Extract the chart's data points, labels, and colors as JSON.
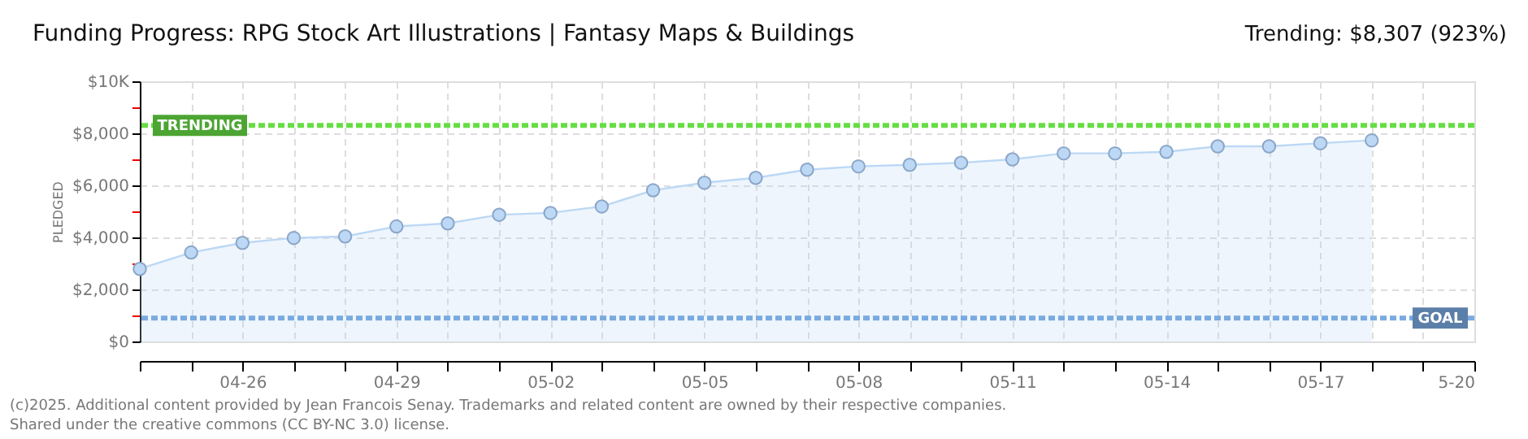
{
  "chart_data": {
    "type": "area",
    "title": "Funding Progress: RPG Stock Art Illustrations | Fantasy Maps & Buildings",
    "subtitle": "Trending: $8,307 (923%)",
    "ylabel": "PLEDGED",
    "x": [
      "2025-04-24",
      "2025-04-25",
      "2025-04-26",
      "2025-04-27",
      "2025-04-28",
      "2025-04-29",
      "2025-04-30",
      "2025-05-01",
      "2025-05-02",
      "2025-05-03",
      "2025-05-04",
      "2025-05-05",
      "2025-05-06",
      "2025-05-07",
      "2025-05-08",
      "2025-05-09",
      "2025-05-10",
      "2025-05-11",
      "2025-05-12",
      "2025-05-13",
      "2025-05-14",
      "2025-05-15",
      "2025-05-16",
      "2025-05-17",
      "2025-05-18"
    ],
    "series": [
      {
        "color": "#bcd8f5",
        "values": [
          2790,
          3420,
          3790,
          3980,
          4040,
          4420,
          4540,
          4870,
          4940,
          5190,
          5810,
          6100,
          6290,
          6600,
          6730,
          6790,
          6870,
          7000,
          7230,
          7230,
          7290,
          7500,
          7500,
          7620,
          7730
        ]
      }
    ],
    "xlim": [
      "2025-04-24",
      "2025-05-20"
    ],
    "xticks": [
      {
        "value": "2025-04-24",
        "label": null
      },
      {
        "value": "2025-04-25",
        "label": null
      },
      {
        "value": "2025-04-26",
        "label": "04-26"
      },
      {
        "value": "2025-04-27",
        "label": null
      },
      {
        "value": "2025-04-28",
        "label": null
      },
      {
        "value": "2025-04-29",
        "label": "04-29"
      },
      {
        "value": "2025-04-30",
        "label": null
      },
      {
        "value": "2025-05-01",
        "label": null
      },
      {
        "value": "2025-05-02",
        "label": "05-02"
      },
      {
        "value": "2025-05-03",
        "label": null
      },
      {
        "value": "2025-05-04",
        "label": null
      },
      {
        "value": "2025-05-05",
        "label": "05-05"
      },
      {
        "value": "2025-05-06",
        "label": null
      },
      {
        "value": "2025-05-07",
        "label": null
      },
      {
        "value": "2025-05-08",
        "label": "05-08"
      },
      {
        "value": "2025-05-09",
        "label": null
      },
      {
        "value": "2025-05-10",
        "label": null
      },
      {
        "value": "2025-05-11",
        "label": "05-11"
      },
      {
        "value": "2025-05-12",
        "label": null
      },
      {
        "value": "2025-05-13",
        "label": null
      },
      {
        "value": "2025-05-14",
        "label": "05-14"
      },
      {
        "value": "2025-05-15",
        "label": null
      },
      {
        "value": "2025-05-16",
        "label": null
      },
      {
        "value": "2025-05-17",
        "label": "05-17"
      },
      {
        "value": "2025-05-18",
        "label": null
      },
      {
        "value": "2025-05-19",
        "label": null
      },
      {
        "value": "2025-05-20",
        "label": "5-20"
      }
    ],
    "ylim": [
      0,
      10000
    ],
    "yticks": [
      {
        "value": 0,
        "label": "$0"
      },
      {
        "value": 1000,
        "label": null
      },
      {
        "value": 2000,
        "label": "$2,000"
      },
      {
        "value": 3000,
        "label": null
      },
      {
        "value": 4000,
        "label": "$4,000"
      },
      {
        "value": 5000,
        "label": null
      },
      {
        "value": 6000,
        "label": "$6,000"
      },
      {
        "value": 7000,
        "label": null
      },
      {
        "value": 8000,
        "label": "$8,000"
      },
      {
        "value": 9000,
        "label": null
      },
      {
        "value": 10000,
        "label": "$10K"
      }
    ],
    "ref_lines": [
      {
        "axis": "y",
        "value": 8307,
        "label": "TRENDING",
        "color": "#66dd44",
        "line_style": "dashed"
      },
      {
        "axis": "y",
        "value": 900,
        "label": "GOAL",
        "color": "#7aaae0",
        "line_style": "dashed"
      }
    ],
    "annotations": [
      "(c)2025. Additional content provided by Jean Francois Senay. Trademarks and related content are owned by their respective companies.",
      "Shared under the creative commons (CC BY-NC 3.0) license."
    ],
    "grid": true,
    "marker": "circle",
    "line_style": "solid"
  }
}
